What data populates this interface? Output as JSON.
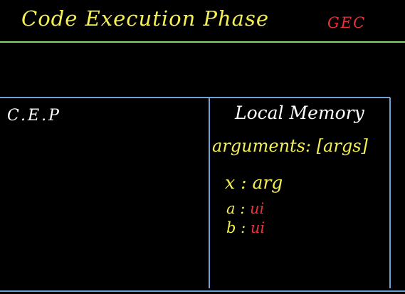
{
  "header": {
    "title": "Code Execution Phase",
    "context_label": "GEC"
  },
  "left_panel": {
    "label": "C.E.P"
  },
  "right_panel": {
    "title": "Local Memory",
    "arguments_line": "arguments: [args]",
    "entries": [
      {
        "name": "x",
        "separator": ":",
        "value": "arg"
      },
      {
        "name": "a",
        "separator": ":",
        "value": "ui"
      },
      {
        "name": "b",
        "separator": ":",
        "value": "ui"
      }
    ]
  },
  "colors": {
    "background": "#000000",
    "header_rule": "#8fd16b",
    "box_border": "#6fa3d8",
    "yellow_ink": "#f4f052",
    "red_ink": "#e8323a",
    "white_ink": "#ffffff"
  }
}
